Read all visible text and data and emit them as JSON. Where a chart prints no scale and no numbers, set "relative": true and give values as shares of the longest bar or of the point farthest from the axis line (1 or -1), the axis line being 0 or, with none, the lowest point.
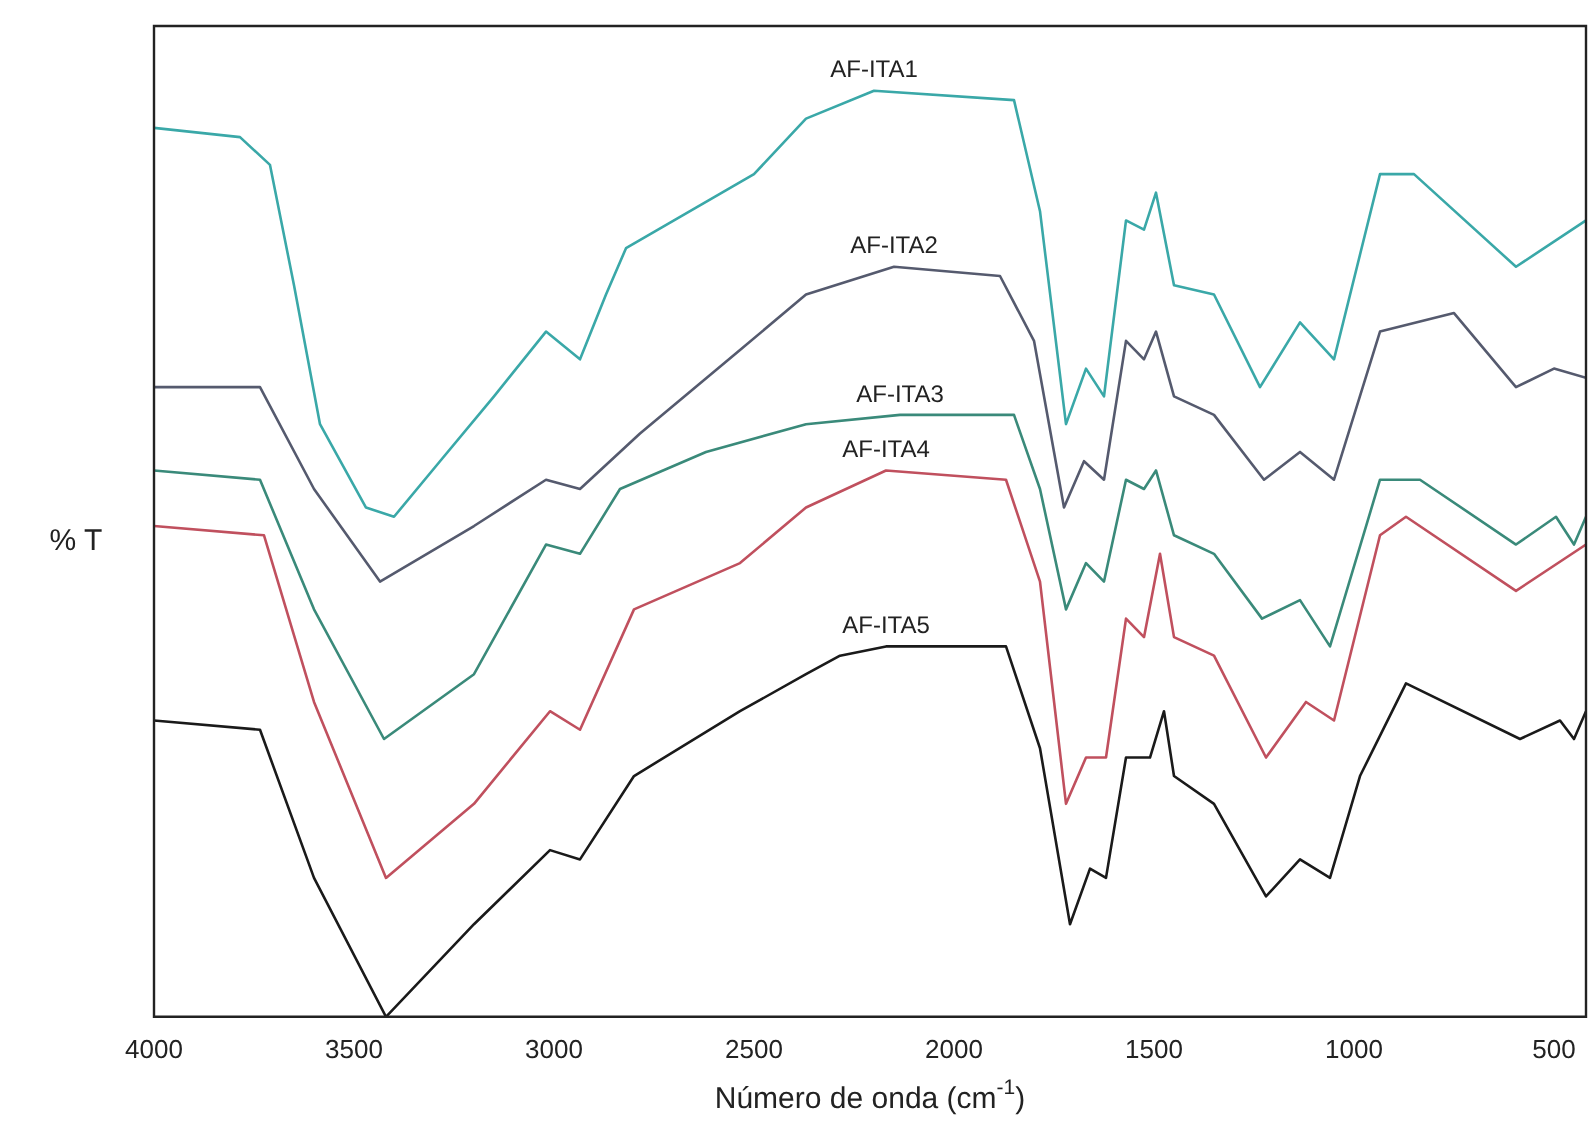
{
  "chart_data": {
    "type": "line",
    "relative": true,
    "xlabel": "Número de onda (cm$^{-1}$)",
    "ylabel": "% T",
    "xlim": [
      4000,
      420
    ],
    "xticks": [
      4000,
      3500,
      3000,
      2500,
      2000,
      1500,
      1000,
      500
    ],
    "grid": false,
    "legend": false,
    "marker": "none",
    "line_style": "solid",
    "series": [
      {
        "name": "AF-ITA1",
        "color": "#3aa8a8",
        "x": [
          4000,
          3785,
          3710,
          3650,
          3585,
          3470,
          3400,
          3285,
          3150,
          3020,
          2935,
          2870,
          2820,
          2620,
          2500,
          2370,
          2200,
          1850,
          1785,
          1720,
          1670,
          1625,
          1570,
          1525,
          1495,
          1450,
          1350,
          1235,
          1135,
          1050,
          935,
          850,
          595,
          420
        ],
        "values": [
          0.96,
          0.95,
          0.92,
          0.79,
          0.64,
          0.55,
          0.54,
          0.6,
          0.67,
          0.74,
          0.71,
          0.78,
          0.83,
          0.88,
          0.91,
          0.97,
          1.0,
          0.99,
          0.87,
          0.64,
          0.7,
          0.67,
          0.86,
          0.85,
          0.89,
          0.79,
          0.78,
          0.68,
          0.75,
          0.71,
          0.91,
          0.91,
          0.81,
          0.86
        ]
      },
      {
        "name": "AF-ITA2",
        "color": "#555a6e",
        "x": [
          4000,
          3735,
          3600,
          3435,
          3200,
          3020,
          2935,
          2785,
          2535,
          2370,
          2150,
          1885,
          1800,
          1725,
          1675,
          1625,
          1570,
          1525,
          1495,
          1450,
          1350,
          1225,
          1135,
          1050,
          935,
          750,
          595,
          500,
          420
        ],
        "values": [
          0.68,
          0.68,
          0.57,
          0.47,
          0.53,
          0.58,
          0.57,
          0.63,
          0.72,
          0.78,
          0.81,
          0.8,
          0.73,
          0.55,
          0.6,
          0.58,
          0.73,
          0.71,
          0.74,
          0.67,
          0.65,
          0.58,
          0.61,
          0.58,
          0.74,
          0.76,
          0.68,
          0.7,
          0.69
        ]
      },
      {
        "name": "AF-ITA3",
        "color": "#3a8a7a",
        "x": [
          4000,
          3735,
          3600,
          3425,
          3200,
          3020,
          2935,
          2835,
          2620,
          2370,
          2135,
          1850,
          1785,
          1720,
          1670,
          1625,
          1570,
          1525,
          1495,
          1450,
          1350,
          1230,
          1135,
          1060,
          935,
          835,
          595,
          495,
          450,
          420
        ],
        "values": [
          0.59,
          0.58,
          0.44,
          0.3,
          0.37,
          0.51,
          0.5,
          0.57,
          0.61,
          0.64,
          0.65,
          0.65,
          0.57,
          0.44,
          0.49,
          0.47,
          0.58,
          0.57,
          0.59,
          0.52,
          0.5,
          0.43,
          0.45,
          0.4,
          0.58,
          0.58,
          0.51,
          0.54,
          0.51,
          0.54
        ]
      },
      {
        "name": "AF-ITA4",
        "color": "#c0505e",
        "x": [
          4000,
          3725,
          3600,
          3420,
          3200,
          3010,
          2935,
          2800,
          2535,
          2370,
          2170,
          1870,
          1785,
          1720,
          1670,
          1620,
          1570,
          1525,
          1485,
          1450,
          1350,
          1220,
          1120,
          1050,
          935,
          870,
          595,
          420
        ],
        "values": [
          0.53,
          0.52,
          0.34,
          0.15,
          0.23,
          0.33,
          0.31,
          0.44,
          0.49,
          0.55,
          0.59,
          0.58,
          0.47,
          0.23,
          0.28,
          0.28,
          0.43,
          0.41,
          0.5,
          0.41,
          0.39,
          0.28,
          0.34,
          0.32,
          0.52,
          0.54,
          0.46,
          0.51
        ]
      },
      {
        "name": "AF-ITA5",
        "color": "#1a1a1a",
        "x": [
          4000,
          3735,
          3600,
          3420,
          3200,
          3010,
          2935,
          2800,
          2535,
          2370,
          2285,
          2170,
          1870,
          1785,
          1710,
          1660,
          1620,
          1570,
          1510,
          1475,
          1450,
          1350,
          1220,
          1135,
          1060,
          985,
          870,
          585,
          485,
          450,
          420
        ],
        "values": [
          0.32,
          0.31,
          0.15,
          0.0,
          0.1,
          0.18,
          0.17,
          0.26,
          0.33,
          0.37,
          0.39,
          0.4,
          0.4,
          0.29,
          0.1,
          0.16,
          0.15,
          0.28,
          0.28,
          0.33,
          0.26,
          0.23,
          0.13,
          0.17,
          0.15,
          0.26,
          0.36,
          0.3,
          0.32,
          0.3,
          0.33
        ]
      }
    ]
  }
}
